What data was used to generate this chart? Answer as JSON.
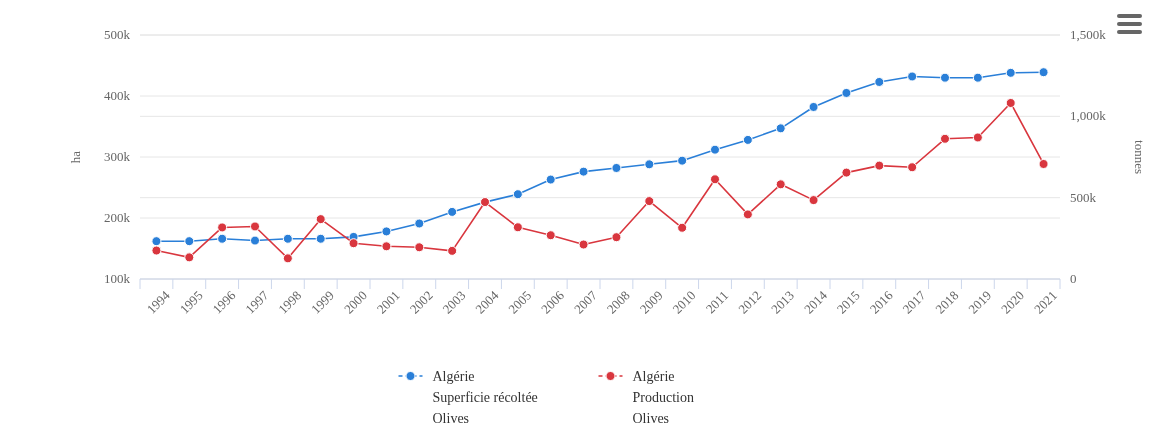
{
  "chart_data": {
    "type": "line",
    "categories": [
      "1994",
      "1995",
      "1996",
      "1997",
      "1998",
      "1999",
      "2000",
      "2001",
      "2002",
      "2003",
      "2004",
      "2005",
      "2006",
      "2007",
      "2008",
      "2009",
      "2010",
      "2011",
      "2012",
      "2013",
      "2014",
      "2015",
      "2016",
      "2017",
      "2018",
      "2019",
      "2020",
      "2021"
    ],
    "ylabel": "ha",
    "y2label": "tonnes",
    "ylim": [
      100000,
      500000
    ],
    "yticks": [
      {
        "value": 100000,
        "label": "100k"
      },
      {
        "value": 200000,
        "label": "200k"
      },
      {
        "value": 300000,
        "label": "300k"
      },
      {
        "value": 400000,
        "label": "400k"
      },
      {
        "value": 500000,
        "label": "500k"
      }
    ],
    "y2lim": [
      0,
      1500000
    ],
    "y2ticks": [
      {
        "value": 0,
        "label": "0"
      },
      {
        "value": 500000,
        "label": "500k"
      },
      {
        "value": 1000000,
        "label": "1,000k"
      },
      {
        "value": 1500000,
        "label": "1,500k"
      }
    ],
    "series": [
      {
        "name": "Algérie\nSuperficie récoltée\nOlives",
        "color": "#2a7fd8",
        "axis": "y",
        "values": [
          162000,
          162000,
          166000,
          163000,
          166000,
          166000,
          169000,
          178000,
          191000,
          210000,
          226000,
          239000,
          263000,
          276000,
          282000,
          288000,
          294000,
          312000,
          328000,
          347000,
          382000,
          405000,
          423000,
          432000,
          430000,
          430000,
          438000,
          439000
        ]
      },
      {
        "name": "Algérie\nProduction\nOlives",
        "color": "#d9363e",
        "axis": "y2",
        "values": [
          175000,
          133000,
          317000,
          323000,
          127000,
          368000,
          220000,
          201000,
          195000,
          173000,
          473000,
          318000,
          269000,
          212000,
          257000,
          479000,
          315000,
          613000,
          397000,
          582000,
          485000,
          654000,
          697000,
          687000,
          862000,
          870000,
          1082000,
          707000
        ]
      }
    ],
    "grid": "y",
    "legend": "bottom",
    "marker": "circle",
    "line_style": "solid"
  }
}
